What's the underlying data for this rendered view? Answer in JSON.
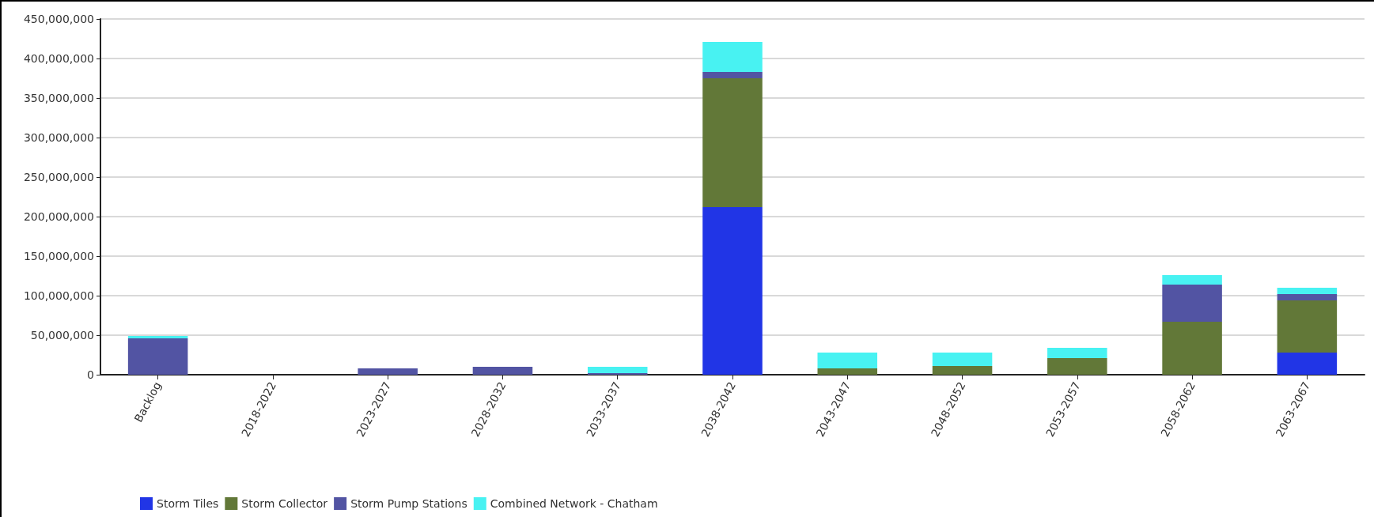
{
  "chart_data": {
    "type": "bar",
    "stacked": true,
    "categories": [
      "Backlog",
      "2018-2022",
      "2023-2027",
      "2028-2032",
      "2033-2037",
      "2038-2042",
      "2043-2047",
      "2048-2052",
      "2053-2057",
      "2058-2062",
      "2063-2067"
    ],
    "series": [
      {
        "name": "Storm Tiles",
        "color": "#2135e6",
        "values": [
          0,
          0,
          0,
          0,
          0,
          212000000,
          0,
          0,
          0,
          0,
          28000000
        ]
      },
      {
        "name": "Storm Collector",
        "color": "#627838",
        "values": [
          0,
          0,
          0,
          0,
          0,
          163000000,
          8000000,
          11000000,
          21000000,
          67000000,
          66000000
        ]
      },
      {
        "name": "Storm Pump Stations",
        "color": "#5254a3",
        "values": [
          46000000,
          0,
          8000000,
          10000000,
          2000000,
          8000000,
          0,
          0,
          0,
          47000000,
          8000000
        ]
      },
      {
        "name": "Combined Network - Chatham",
        "color": "#48f2f2",
        "values": [
          3000000,
          0,
          0,
          0,
          8000000,
          38000000,
          20000000,
          17000000,
          13000000,
          12000000,
          8000000
        ]
      }
    ],
    "ylim": [
      0,
      450000000
    ],
    "yticks": [
      0,
      {
        "value": 50000000,
        "label": "50,000,000"
      },
      {
        "value": 100000000,
        "label": "100,000,000"
      },
      {
        "value": 150000000,
        "label": "150,000,000"
      },
      {
        "value": 200000000,
        "label": "200,000,000"
      },
      {
        "value": 250000000,
        "label": "250,000,000"
      },
      {
        "value": 300000000,
        "label": "300,000,000"
      },
      {
        "value": 350000000,
        "label": "350,000,000"
      },
      {
        "value": 400000000,
        "label": "400,000,000"
      },
      {
        "value": 450000000,
        "label": "450,000,000"
      }
    ],
    "grid": "y",
    "legend": "bottom left"
  }
}
